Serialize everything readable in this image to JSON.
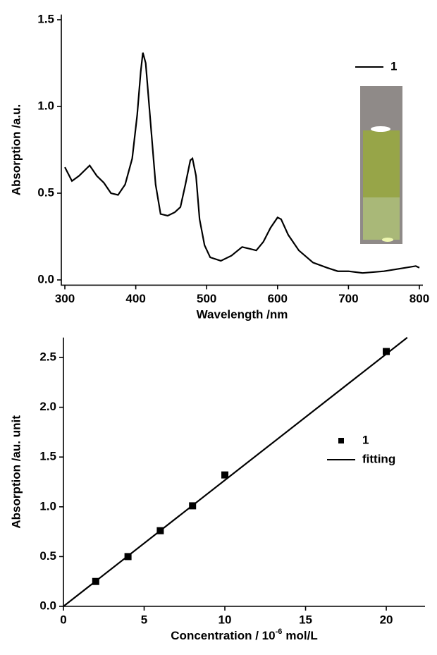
{
  "chart_data": [
    {
      "type": "line",
      "x_label": "Wavelength /nm",
      "y_label": "Absorption /a.u.",
      "xlim": [
        295,
        805
      ],
      "ylim": [
        -0.03,
        1.53
      ],
      "xticks": [
        300,
        400,
        500,
        600,
        700,
        800
      ],
      "yticks": [
        {
          "value": 0,
          "label": "0.0"
        },
        0.5,
        {
          "value": 1,
          "label": "1.0"
        },
        1.5
      ],
      "legend": "top-right",
      "series": [
        {
          "name": "1",
          "color": "#000000",
          "x": [
            300,
            310,
            320,
            335,
            345,
            355,
            365,
            375,
            385,
            395,
            402,
            407,
            410,
            414,
            420,
            428,
            435,
            445,
            455,
            463,
            470,
            477,
            480,
            485,
            490,
            497,
            505,
            520,
            535,
            550,
            560,
            570,
            580,
            590,
            600,
            605,
            615,
            630,
            650,
            670,
            685,
            700,
            720,
            750,
            780,
            795,
            800
          ],
          "values": [
            0.65,
            0.57,
            0.6,
            0.66,
            0.6,
            0.56,
            0.5,
            0.49,
            0.55,
            0.7,
            0.95,
            1.2,
            1.31,
            1.25,
            0.95,
            0.55,
            0.38,
            0.37,
            0.39,
            0.42,
            0.55,
            0.69,
            0.7,
            0.6,
            0.35,
            0.2,
            0.13,
            0.11,
            0.14,
            0.19,
            0.18,
            0.17,
            0.22,
            0.3,
            0.36,
            0.35,
            0.26,
            0.17,
            0.1,
            0.07,
            0.05,
            0.05,
            0.04,
            0.05,
            0.07,
            0.08,
            0.07
          ]
        }
      ]
    },
    {
      "type": "scatter",
      "x_label": "Concentration / 10",
      "x_label_exponent": "-6",
      "x_label_unit": "mol/L",
      "y_label": "Absorption /au. unit",
      "xlim": [
        0,
        22.4
      ],
      "ylim": [
        0,
        2.7
      ],
      "xticks": [
        0,
        5,
        10,
        15,
        20
      ],
      "yticks": [
        {
          "value": 0,
          "label": "0.0"
        },
        0.5,
        {
          "value": 1,
          "label": "1.0"
        },
        1.5,
        {
          "value": 2,
          "label": "2.0"
        },
        2.5
      ],
      "legend": "right",
      "series": [
        {
          "name": "1",
          "type": "scatter",
          "color": "#000000",
          "x": [
            2,
            4,
            6,
            8,
            10,
            20
          ],
          "values": [
            0.25,
            0.5,
            0.76,
            1.01,
            1.32,
            2.56
          ]
        },
        {
          "name": "fitting",
          "type": "line",
          "color": "#000000",
          "x": [
            0,
            21.3
          ],
          "values": [
            0,
            2.7
          ]
        }
      ]
    }
  ]
}
